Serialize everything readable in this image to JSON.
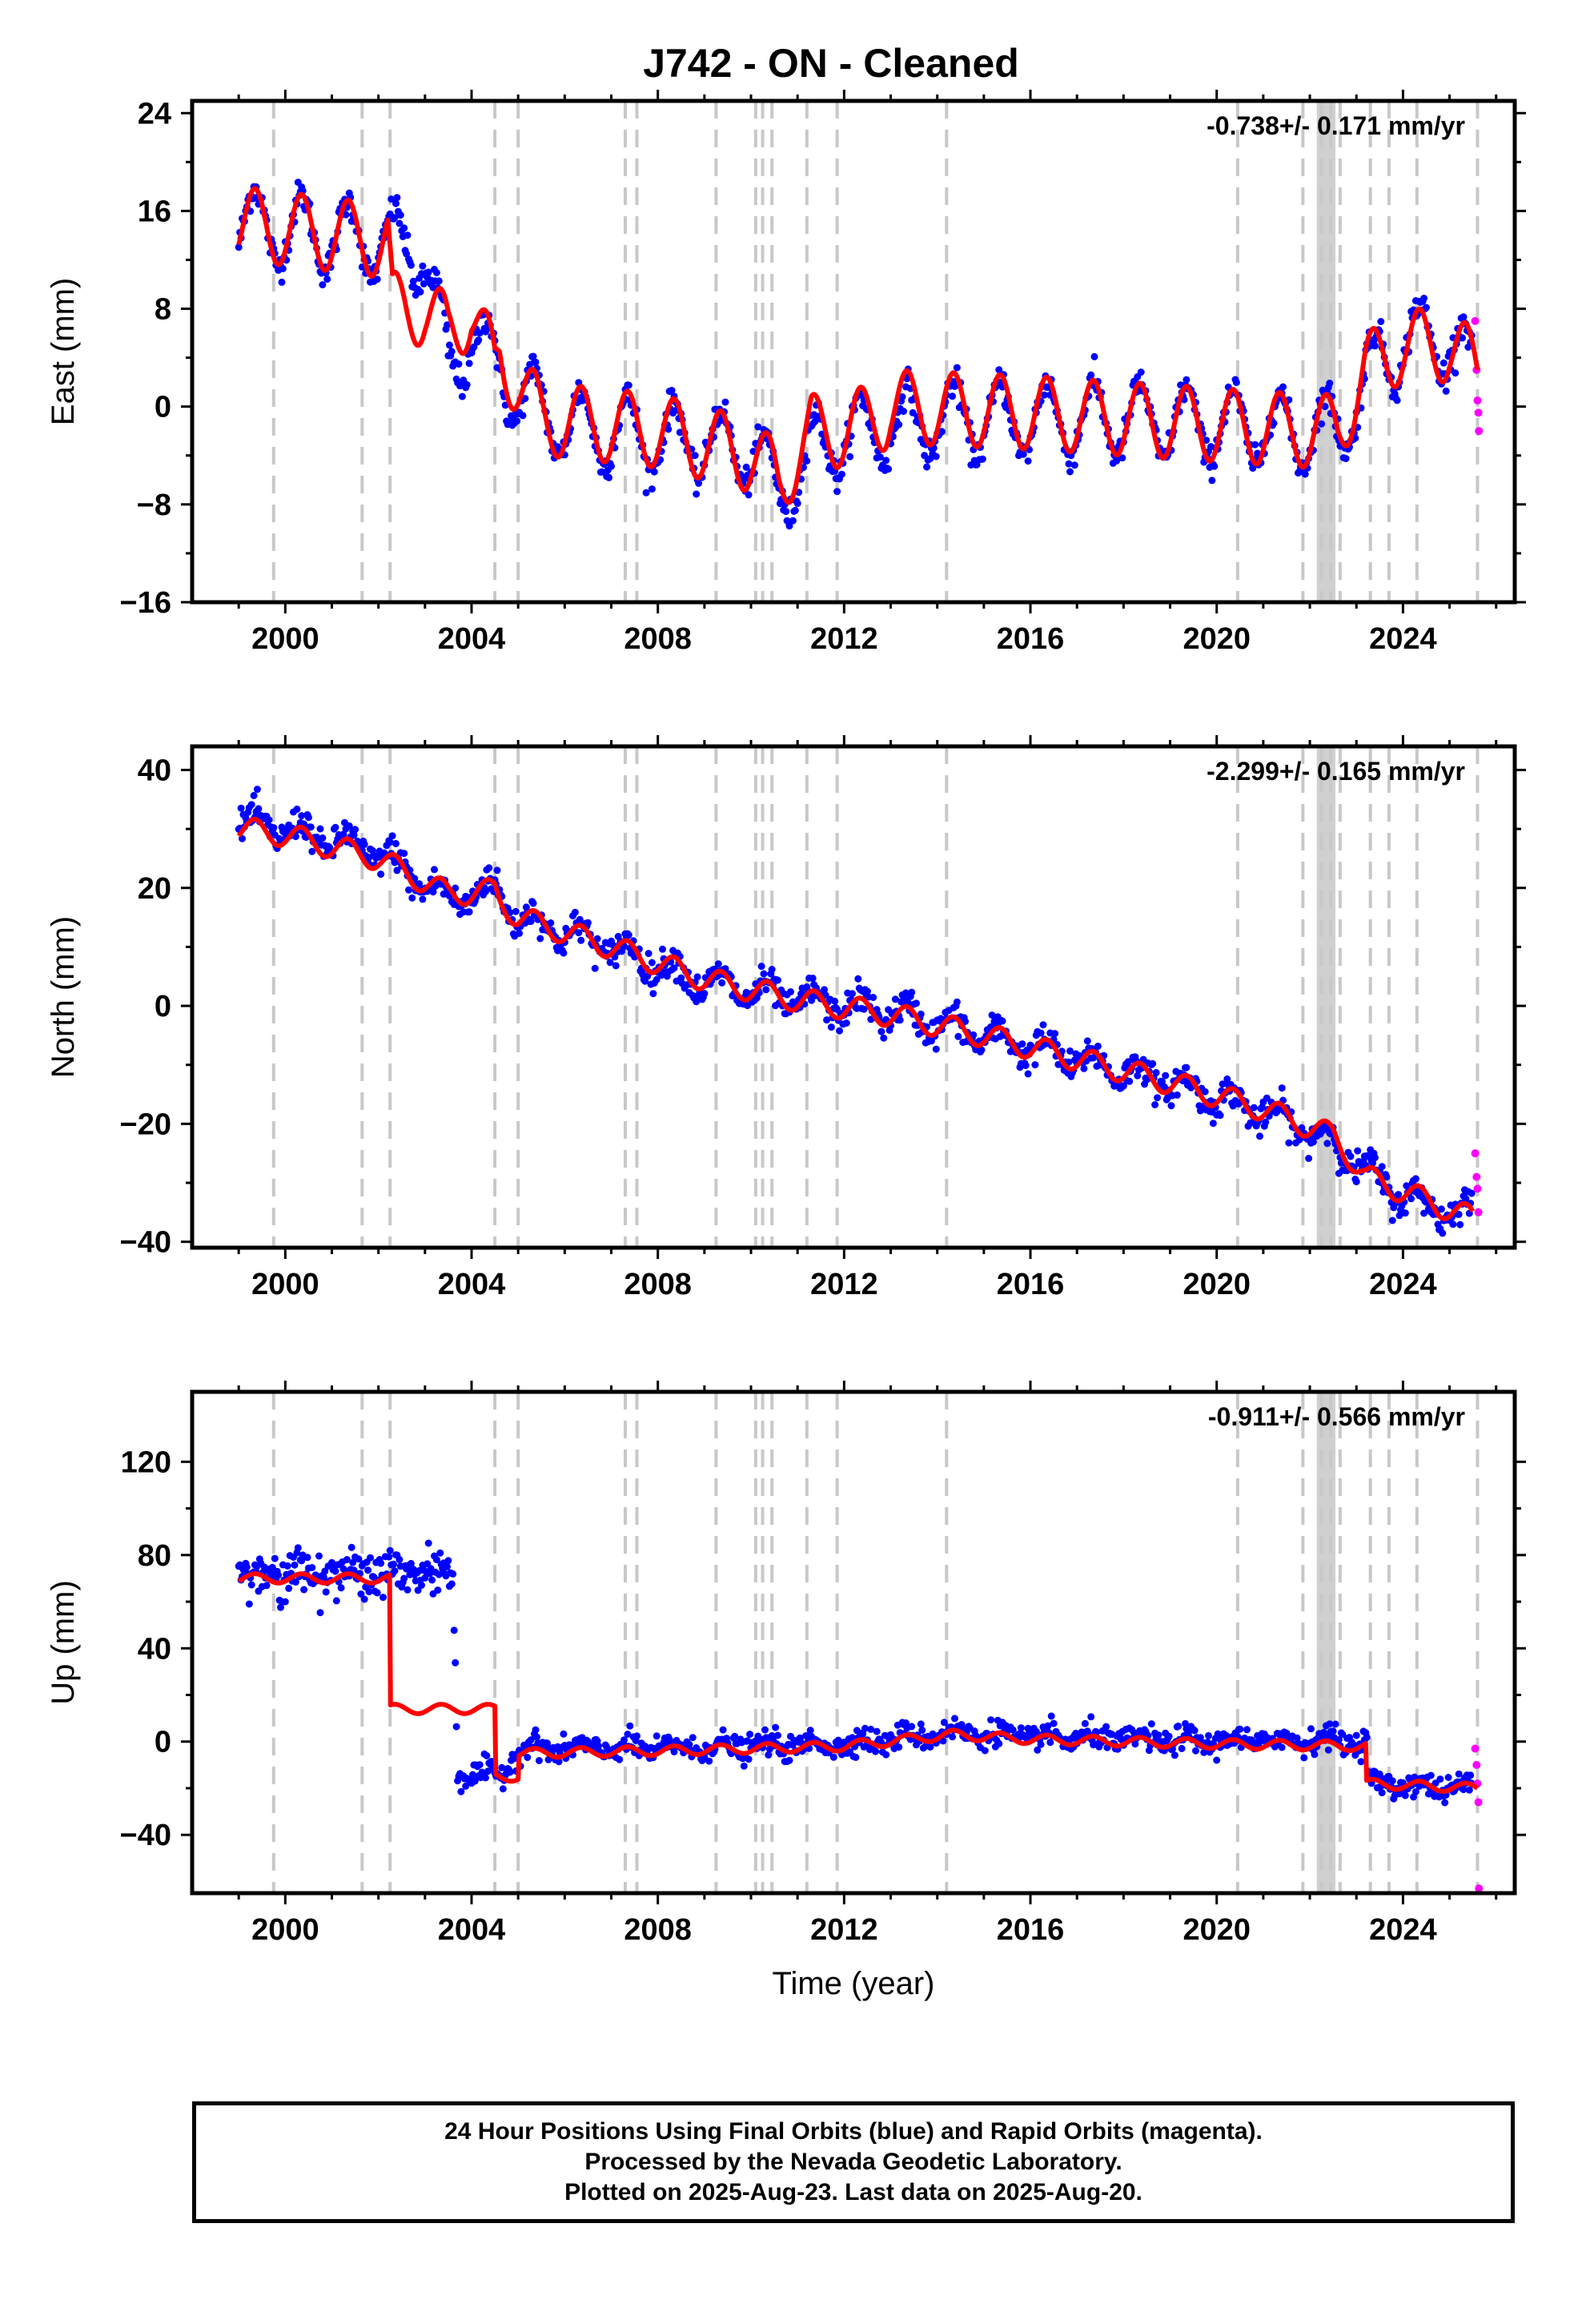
{
  "title": "J742  - ON - Cleaned",
  "colors": {
    "final_orbits": "#0000ff",
    "rapid_orbits": "#ff00ff",
    "model": "#ff0000",
    "events": "#c8c8c8",
    "frame": "#000000"
  },
  "chart_data": [
    {
      "type": "scatter",
      "panel": "east",
      "ylabel": "East (mm)",
      "rate_label": "-0.738+/- 0.171 mm/yr",
      "xlim": [
        1998.0,
        2026.4
      ],
      "ylim": [
        -16,
        25
      ],
      "xticks": [
        2000,
        2004,
        2008,
        2012,
        2016,
        2020,
        2024
      ],
      "yticks": [
        -16,
        -8,
        0,
        8,
        16,
        24
      ],
      "grid": false,
      "series": [
        {
          "style": "dots",
          "color_key": "final_orbits",
          "x": [
            1999.0,
            2000.0,
            2001.0,
            2002.0,
            2003.0,
            2003.5,
            2004.0,
            2005.0,
            2006.0,
            2008.0,
            2010.0,
            2010.6,
            2011.5,
            2013.0,
            2014.0,
            2016.0,
            2018.0,
            2020.0,
            2021.8,
            2022.6,
            2023.5,
            2024.2,
            2025.0,
            2025.5
          ],
          "y": [
            15.0,
            14.5,
            14.0,
            13.5,
            12.5,
            3.0,
            6.0,
            1.0,
            -1.5,
            -2.5,
            -3.5,
            -7.0,
            -3.0,
            -1.5,
            -1.0,
            -1.0,
            -1.0,
            -1.5,
            -2.0,
            -2.0,
            4.0,
            5.5,
            5.5,
            3.0
          ]
        },
        {
          "style": "dots",
          "color_key": "rapid_orbits",
          "x": [
            2025.55,
            2025.58,
            2025.6,
            2025.62,
            2025.63
          ],
          "y": [
            7.0,
            3.0,
            0.5,
            -0.5,
            -2.0
          ]
        },
        {
          "style": "line",
          "color_key": "model",
          "x": [
            1999.0,
            2002.2,
            2002.3,
            2003.0,
            2003.5,
            2004.0,
            2004.5,
            2004.6,
            2005.0,
            2005.5,
            2008.0,
            2010.0,
            2010.6,
            2011.2,
            2011.3,
            2012.0,
            2012.9,
            2013.0,
            2016.0,
            2020.0,
            2022.0,
            2022.6,
            2023.2,
            2024.0,
            2025.0,
            2025.6
          ],
          "y": [
            15.0,
            13.5,
            8.0,
            8.0,
            6.0,
            8.0,
            3.0,
            4.5,
            2.0,
            -1.0,
            -2.0,
            -4.0,
            -6.0,
            -3.0,
            -2.0,
            -2.0,
            -0.5,
            0.0,
            -0.5,
            -1.5,
            -2.0,
            -2.0,
            3.0,
            5.0,
            5.0,
            3.0
          ],
          "annual_amp": 3.0
        }
      ]
    },
    {
      "type": "scatter",
      "panel": "north",
      "ylabel": "North (mm)",
      "rate_label": "-2.299+/- 0.165 mm/yr",
      "xlim": [
        1998.0,
        2026.4
      ],
      "ylim": [
        -41,
        44
      ],
      "xticks": [
        2000,
        2004,
        2008,
        2012,
        2016,
        2020,
        2024
      ],
      "yticks": [
        -40,
        -20,
        0,
        20,
        40
      ],
      "grid": false,
      "series": [
        {
          "style": "dots",
          "color_key": "final_orbits",
          "x": [
            1999.0,
            2000.0,
            2002.0,
            2003.5,
            2004.5,
            2005.0,
            2007.0,
            2009.0,
            2011.0,
            2013.0,
            2015.0,
            2017.0,
            2019.0,
            2021.0,
            2022.5,
            2023.5,
            2024.5,
            2025.5
          ],
          "y": [
            31.0,
            30.0,
            26.0,
            18.0,
            20.0,
            15.0,
            10.0,
            4.0,
            1.0,
            -1.0,
            -5.0,
            -9.0,
            -13.0,
            -18.0,
            -23.0,
            -30.0,
            -34.0,
            -35.0
          ]
        },
        {
          "style": "dots",
          "color_key": "rapid_orbits",
          "x": [
            2025.55,
            2025.58,
            2025.6,
            2025.62
          ],
          "y": [
            -25.0,
            -29.0,
            -31.0,
            -35.0
          ]
        },
        {
          "style": "line",
          "color_key": "model",
          "x": [
            1999.0,
            2000.0,
            2002.0,
            2003.5,
            2004.5,
            2004.6,
            2005.0,
            2007.0,
            2009.0,
            2011.0,
            2013.0,
            2015.0,
            2017.0,
            2019.0,
            2021.0,
            2022.5,
            2023.2,
            2024.5,
            2025.5
          ],
          "y": [
            30.0,
            29.0,
            25.0,
            19.0,
            19.5,
            18.0,
            15.0,
            10.0,
            4.5,
            1.0,
            -1.5,
            -5.0,
            -9.0,
            -13.0,
            -17.5,
            -22.0,
            -29.0,
            -33.0,
            -36.0
          ],
          "annual_amp": 2.0
        }
      ]
    },
    {
      "type": "scatter",
      "panel": "up",
      "ylabel": "Up (mm)",
      "rate_label": "-0.911+/- 0.566 mm/yr",
      "xlim": [
        1998.0,
        2026.4
      ],
      "ylim": [
        -65,
        150
      ],
      "xticks": [
        2000,
        2004,
        2008,
        2012,
        2016,
        2020,
        2024
      ],
      "yticks": [
        -40,
        0,
        40,
        80,
        120
      ],
      "xlabel": "Time (year)",
      "grid": false,
      "series": [
        {
          "style": "dots",
          "color_key": "final_orbits",
          "x": [
            1999.0,
            2002.3,
            2003.6,
            2003.7,
            2004.6,
            2005.0,
            2008.0,
            2012.0,
            2014.3,
            2016.0,
            2020.0,
            2022.5,
            2023.2,
            2023.3,
            2025.5
          ],
          "y": [
            72.0,
            72.0,
            72.0,
            -13.0,
            -15.0,
            -3.0,
            -3.0,
            -1.0,
            4.0,
            2.0,
            0.0,
            1.0,
            0.0,
            -18.0,
            -20.0
          ]
        },
        {
          "style": "dots",
          "color_key": "rapid_orbits",
          "x": [
            2025.55,
            2025.58,
            2025.6,
            2025.62,
            2025.63
          ],
          "y": [
            -3.0,
            -10.0,
            -18.0,
            -26.0,
            -63.0
          ]
        },
        {
          "style": "line",
          "color_key": "model",
          "x": [
            1999.0,
            2002.25,
            2002.26,
            2004.5,
            2004.51,
            2005.0,
            2005.01,
            2008.0,
            2012.0,
            2014.3,
            2016.0,
            2020.0,
            2023.2,
            2023.21,
            2025.6
          ],
          "y": [
            70.0,
            70.0,
            14.0,
            14.0,
            -15.0,
            -15.0,
            -5.0,
            -4.0,
            -2.0,
            3.0,
            1.0,
            -1.0,
            -2.0,
            -18.0,
            -20.0
          ],
          "annual_amp": 2.0
        }
      ]
    }
  ],
  "event_lines": [
    1999.75,
    2001.65,
    2002.25,
    2004.5,
    2005.0,
    2007.3,
    2007.55,
    2009.25,
    2010.1,
    2010.25,
    2010.45,
    2011.2,
    2011.85,
    2014.2,
    2020.45,
    2021.85,
    2022.25,
    2022.45,
    2022.65,
    2023.3,
    2023.7,
    2024.3,
    2025.6
  ],
  "shaded_band": [
    2022.15,
    2022.55
  ],
  "footer": {
    "line1": "24 Hour Positions Using Final Orbits (blue) and Rapid Orbits (magenta).",
    "line2": "Processed by the Nevada Geodetic Laboratory.",
    "line3": "Plotted on 2025-Aug-23. Last data on 2025-Aug-20."
  }
}
